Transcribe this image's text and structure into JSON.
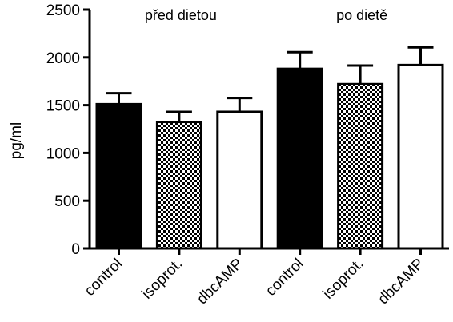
{
  "chart_data": {
    "type": "bar",
    "categories": [
      "control",
      "isoprot.",
      "dbcAMP",
      "control",
      "isoprot.",
      "dbcAMP"
    ],
    "values": [
      1510,
      1325,
      1430,
      1880,
      1720,
      1920
    ],
    "errors": [
      115,
      105,
      145,
      175,
      195,
      185
    ],
    "fills": [
      "solid",
      "checker",
      "open",
      "solid",
      "checker",
      "open"
    ],
    "groups": [
      {
        "label": "před dietou",
        "start": 0,
        "end": 2
      },
      {
        "label": "po dietě",
        "start": 3,
        "end": 5
      }
    ],
    "ylabel": "pg/ml",
    "ylim": [
      0,
      2500
    ],
    "yticks": [
      0,
      500,
      1000,
      1500,
      2000,
      2500
    ],
    "colors": {
      "bar_fill_solid": "#000000",
      "bar_stroke": "#000000",
      "background": "#ffffff"
    }
  }
}
